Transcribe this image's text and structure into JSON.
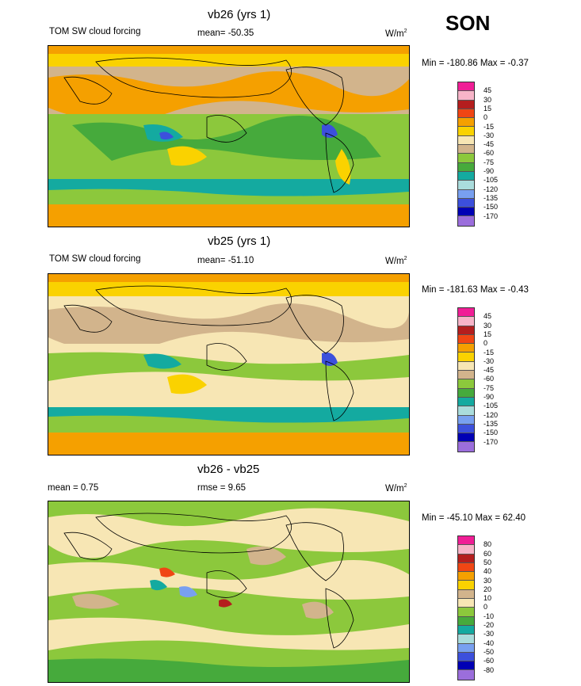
{
  "season": "SON",
  "panels": [
    {
      "title": "vb26 (yrs 1)",
      "left_label": "TOM SW cloud forcing",
      "stat_label": "mean=",
      "stat_value": "-50.35",
      "unit_base": "W/m",
      "unit_exp": "2",
      "minmax": "Min = -180.86 Max =  -0.37",
      "levels": [
        "45",
        "30",
        "15",
        "0",
        "-15",
        "-30",
        "-45",
        "-60",
        "-75",
        "-90",
        "-105",
        "-120",
        "-135",
        "-150",
        "-170"
      ],
      "colors": [
        "#f01e96",
        "#f7b4c8",
        "#b41e1e",
        "#f04614",
        "#f5a000",
        "#fad200",
        "#f7e6b4",
        "#d2b48c",
        "#8cc83c",
        "#46aa3c",
        "#14aaa0",
        "#aadcdc",
        "#78a0f0",
        "#3c50dc",
        "#0000b4",
        "#9b6edc"
      ]
    },
    {
      "title": "vb25 (yrs 1)",
      "left_label": "TOM SW cloud forcing",
      "stat_label": "mean=",
      "stat_value": "-51.10",
      "unit_base": "W/m",
      "unit_exp": "2",
      "minmax": "Min = -181.63 Max =  -0.43",
      "levels": [
        "45",
        "30",
        "15",
        "0",
        "-15",
        "-30",
        "-45",
        "-60",
        "-75",
        "-90",
        "-105",
        "-120",
        "-135",
        "-150",
        "-170"
      ],
      "colors": [
        "#f01e96",
        "#f7b4c8",
        "#b41e1e",
        "#f04614",
        "#f5a000",
        "#fad200",
        "#f7e6b4",
        "#d2b48c",
        "#8cc83c",
        "#46aa3c",
        "#14aaa0",
        "#aadcdc",
        "#78a0f0",
        "#3c50dc",
        "#0000b4",
        "#9b6edc"
      ]
    },
    {
      "title": "vb26 - vb25",
      "left_label": "mean =   0.75",
      "stat_label": "rmse =",
      "stat_value": "9.65",
      "unit_base": "W/m",
      "unit_exp": "2",
      "minmax": "Min = -45.10 Max =  62.40",
      "levels": [
        "80",
        "60",
        "50",
        "40",
        "30",
        "20",
        "10",
        "0",
        "-10",
        "-20",
        "-30",
        "-40",
        "-50",
        "-60",
        "-80"
      ],
      "colors": [
        "#f01e96",
        "#f7b4c8",
        "#b41e1e",
        "#f04614",
        "#f5a000",
        "#fad200",
        "#d2b48c",
        "#f7e6b4",
        "#8cc83c",
        "#46aa3c",
        "#14aaa0",
        "#aadcdc",
        "#78a0f0",
        "#3c50dc",
        "#0000b4",
        "#9b6edc"
      ]
    }
  ]
}
